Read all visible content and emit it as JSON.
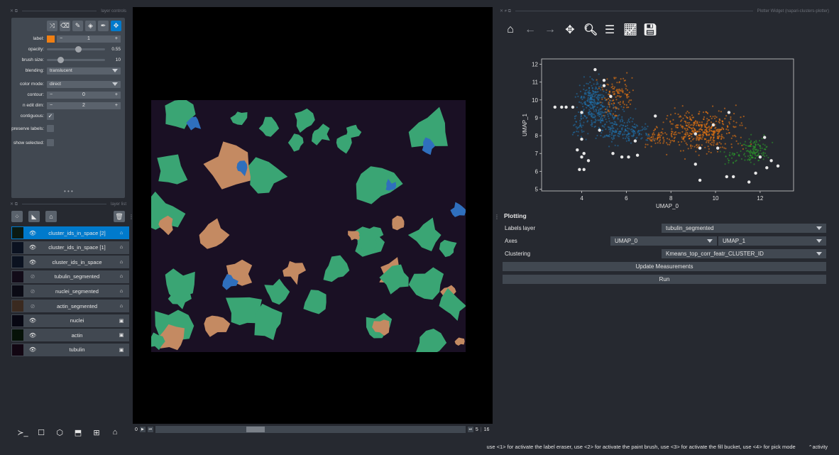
{
  "left_dock": {
    "controls_title": "layer controls",
    "list_title": "layer list",
    "controls": {
      "label": {
        "name": "label:",
        "value": "1",
        "color": "#f07f13"
      },
      "opacity": {
        "name": "opacity:",
        "value": "0.55",
        "fraction": 0.55
      },
      "brush_size": {
        "name": "brush size:",
        "value": "10",
        "fraction": 0.18
      },
      "blending": {
        "name": "blending:",
        "value": "translucent"
      },
      "color_mode": {
        "name": "color mode:",
        "value": "direct"
      },
      "contour": {
        "name": "contour:",
        "value": "0"
      },
      "n_edit_dim": {
        "name": "n edit dim:",
        "value": "2"
      },
      "contiguous": {
        "name": "contiguous:"
      },
      "preserve_labels": {
        "name": "preserve labels:"
      },
      "show_selected": {
        "name": "show selected:"
      }
    },
    "layers": [
      {
        "name": "cluster_ids_in_space [2]",
        "visible": true,
        "type": "labels",
        "selected": true
      },
      {
        "name": "cluster_ids_in_space [1]",
        "visible": true,
        "type": "labels",
        "selected": false
      },
      {
        "name": "cluster_ids_in_space",
        "visible": true,
        "type": "labels",
        "selected": false
      },
      {
        "name": "tubulin_segmented",
        "visible": false,
        "type": "labels",
        "selected": false
      },
      {
        "name": "nuclei_segmented",
        "visible": false,
        "type": "labels",
        "selected": false
      },
      {
        "name": "actin_segmented",
        "visible": false,
        "type": "labels",
        "selected": false
      },
      {
        "name": "nuclei",
        "visible": true,
        "type": "image",
        "selected": false
      },
      {
        "name": "actin",
        "visible": true,
        "type": "image",
        "selected": false
      },
      {
        "name": "tubulin",
        "visible": true,
        "type": "image",
        "selected": false
      }
    ]
  },
  "dims": {
    "current": "0",
    "slider_pos": "5",
    "slider_max": "16"
  },
  "right_dock": {
    "title": "Plotter Widget (napari-clusters-plotter)",
    "section_title": "Plotting",
    "labels_layer": {
      "label": "Labels layer",
      "value": "tubulin_segmented"
    },
    "axes": {
      "label": "Axes",
      "x": "UMAP_0",
      "y": "UMAP_1"
    },
    "clustering": {
      "label": "Clustering",
      "value": "Kmeans_top_corr_featr_CLUSTER_ID"
    },
    "update_button": "Update Measurements",
    "run_button": "Run"
  },
  "chart_data": {
    "type": "scatter",
    "title": "",
    "xlabel": "UMAP_0",
    "ylabel": "UMAP_1",
    "xlim": [
      2.2,
      13.5
    ],
    "ylim": [
      4.9,
      12.3
    ],
    "xticks": [
      "4",
      "6",
      "8",
      "10",
      "12"
    ],
    "yticks": [
      "5",
      "6",
      "7",
      "8",
      "9",
      "10",
      "11",
      "12"
    ],
    "series": [
      {
        "color": "#1f77b4",
        "clusters": [
          [
            4.5,
            9.8,
            0.55,
            1.1,
            260
          ],
          [
            5.4,
            8.6,
            0.7,
            0.9,
            150
          ],
          [
            6.2,
            8.2,
            0.8,
            0.5,
            90
          ],
          [
            3.9,
            8.6,
            0.3,
            0.7,
            40
          ]
        ]
      },
      {
        "color": "#ff7f0e",
        "clusters": [
          [
            9.4,
            8.3,
            1.4,
            1.0,
            420
          ],
          [
            5.6,
            10.3,
            0.6,
            1.0,
            120
          ],
          [
            7.5,
            7.9,
            0.6,
            0.5,
            60
          ]
        ]
      },
      {
        "color": "#2ca02c",
        "clusters": [
          [
            11.8,
            7.2,
            0.6,
            0.6,
            120
          ],
          [
            10.8,
            6.8,
            0.4,
            0.4,
            30
          ]
        ]
      }
    ],
    "highlight_points": [
      [
        2.8,
        9.6
      ],
      [
        3.1,
        9.6
      ],
      [
        3.3,
        9.6
      ],
      [
        3.6,
        9.6
      ],
      [
        4.0,
        9.3
      ],
      [
        4.6,
        11.7
      ],
      [
        5.0,
        11.1
      ],
      [
        5.0,
        10.8
      ],
      [
        5.3,
        10.2
      ],
      [
        4.8,
        8.3
      ],
      [
        4.0,
        7.8
      ],
      [
        3.8,
        7.2
      ],
      [
        4.1,
        7.0
      ],
      [
        4.0,
        6.8
      ],
      [
        3.9,
        6.1
      ],
      [
        4.1,
        6.1
      ],
      [
        4.3,
        6.6
      ],
      [
        5.4,
        7.0
      ],
      [
        5.8,
        6.8
      ],
      [
        6.1,
        6.8
      ],
      [
        6.4,
        7.7
      ],
      [
        6.5,
        6.9
      ],
      [
        7.3,
        9.1
      ],
      [
        9.1,
        8.1
      ],
      [
        9.3,
        7.3
      ],
      [
        9.1,
        6.4
      ],
      [
        9.3,
        5.5
      ],
      [
        9.9,
        8.6
      ],
      [
        10.1,
        7.3
      ],
      [
        10.6,
        9.3
      ],
      [
        10.5,
        5.7
      ],
      [
        10.8,
        5.7
      ],
      [
        11.5,
        5.4
      ],
      [
        11.8,
        5.9
      ],
      [
        12.0,
        6.8
      ],
      [
        12.2,
        7.9
      ],
      [
        12.3,
        6.2
      ],
      [
        12.5,
        6.6
      ],
      [
        12.8,
        6.3
      ]
    ]
  },
  "status": {
    "message": "use <1> for activate the label eraser, use <2> for activate the paint brush, use <3> for activate the fill bucket, use <4> for pick mode",
    "activity": "activity"
  }
}
